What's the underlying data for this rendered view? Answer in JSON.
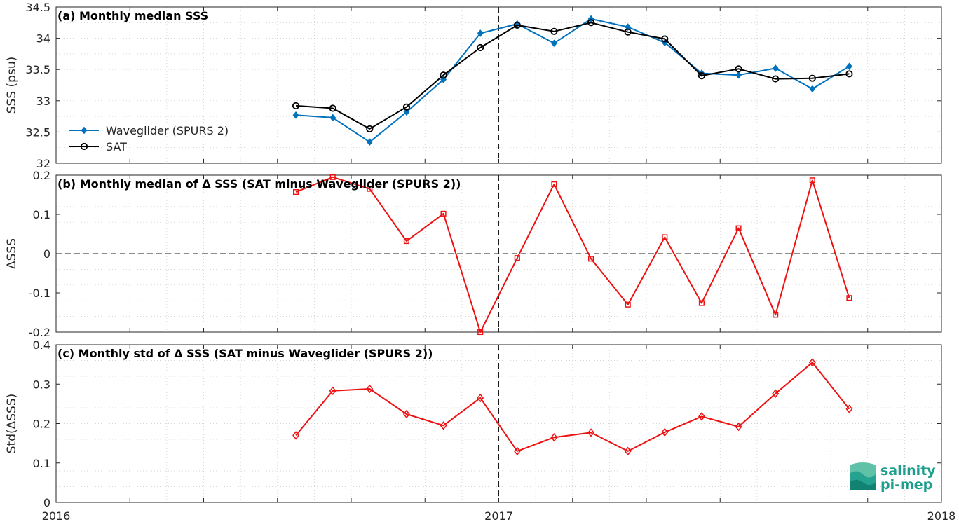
{
  "chart_data": [
    {
      "type": "line",
      "title": "(a) Monthly median SSS",
      "ylabel": "SSS (psu)",
      "ylim": [
        32,
        34.5
      ],
      "yticks": [
        "32",
        "32.5",
        "33",
        "33.5",
        "34",
        "34.5"
      ],
      "yticks_values": [
        32,
        32.5,
        33,
        33.5,
        34,
        34.5
      ],
      "grid": true,
      "legend_position": "lower-left",
      "x": [
        "2016-07",
        "2016-08",
        "2016-09",
        "2016-10",
        "2016-11",
        "2016-12",
        "2017-01",
        "2017-02",
        "2017-03",
        "2017-04",
        "2017-05",
        "2017-06",
        "2017-07",
        "2017-08",
        "2017-09",
        "2017-10",
        "2017-11"
      ],
      "series": [
        {
          "name": "Waveglider (SPURS 2)",
          "color": "#0072bd",
          "marker": "diamond-filled",
          "values": [
            32.77,
            32.73,
            32.34,
            32.82,
            33.34,
            34.08,
            34.23,
            33.92,
            34.31,
            34.18,
            33.93,
            33.44,
            33.41,
            33.52,
            33.19,
            33.55,
            null
          ]
        },
        {
          "name": "SAT",
          "color": "#000000",
          "marker": "circle-open",
          "values": [
            32.92,
            32.88,
            32.55,
            32.9,
            33.41,
            33.85,
            34.21,
            34.11,
            34.25,
            34.1,
            33.99,
            33.4,
            33.51,
            33.35,
            33.36,
            33.43,
            null
          ]
        }
      ]
    },
    {
      "type": "line",
      "title": "(b) Monthly median of Δ SSS (SAT minus Waveglider (SPURS 2))",
      "ylabel": "ΔSSS",
      "ylim": [
        -0.2,
        0.2
      ],
      "yticks": [
        "-0.2",
        "-0.1",
        "0",
        "0.1",
        "0.2"
      ],
      "yticks_values": [
        -0.2,
        -0.1,
        0,
        0.1,
        0.2
      ],
      "grid": true,
      "reference_line": 0,
      "x": [
        "2016-07",
        "2016-08",
        "2016-09",
        "2016-10",
        "2016-11",
        "2016-12",
        "2017-01",
        "2017-02",
        "2017-03",
        "2017-04",
        "2017-05",
        "2017-06",
        "2017-07",
        "2017-08",
        "2017-09",
        "2017-10"
      ],
      "series": [
        {
          "color": "#ee1111",
          "marker": "square-open",
          "values": [
            0.157,
            0.195,
            0.165,
            0.032,
            0.102,
            -0.2,
            -0.011,
            0.177,
            -0.013,
            -0.13,
            0.042,
            -0.126,
            0.065,
            -0.156,
            0.187,
            -0.113
          ]
        }
      ]
    },
    {
      "type": "line",
      "title": "(c) Monthly std of Δ SSS (SAT minus Waveglider (SPURS 2))",
      "ylabel": "Std(ΔSSS)",
      "ylim": [
        0,
        0.4
      ],
      "yticks": [
        "0",
        "0.1",
        "0.2",
        "0.3",
        "0.4"
      ],
      "yticks_values": [
        0,
        0.1,
        0.2,
        0.3,
        0.4
      ],
      "xticks": [
        "2016",
        "2017",
        "2018"
      ],
      "grid": true,
      "x": [
        "2016-07",
        "2016-08",
        "2016-09",
        "2016-10",
        "2016-11",
        "2016-12",
        "2017-01",
        "2017-02",
        "2017-03",
        "2017-04",
        "2017-05",
        "2017-06",
        "2017-07",
        "2017-08",
        "2017-09",
        "2017-10"
      ],
      "series": [
        {
          "color": "#ee1111",
          "marker": "diamond-open",
          "values": [
            0.17,
            0.283,
            0.288,
            0.224,
            0.195,
            0.265,
            0.13,
            0.165,
            0.177,
            0.13,
            0.178,
            0.218,
            0.192,
            0.276,
            0.355,
            0.237
          ]
        }
      ]
    }
  ],
  "logo": {
    "line1": "salinity",
    "line2": "pi-mep",
    "color": "#1c9e8c"
  }
}
